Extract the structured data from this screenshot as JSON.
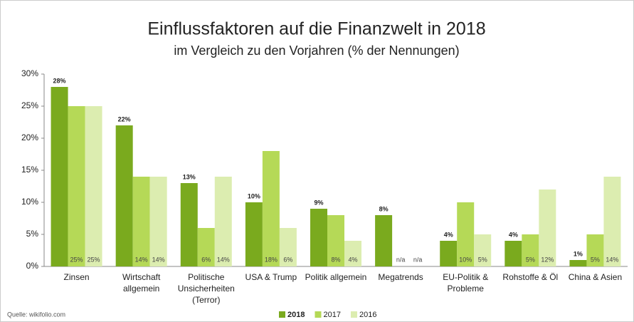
{
  "chart_data": {
    "type": "bar",
    "title": "Einflussfaktoren auf die Finanzwelt in 2018",
    "subtitle": "im Vergleich zu den Vorjahren (% der Nennungen)",
    "source": "Quelle: wikifolio.com",
    "categories": [
      "Zinsen",
      "Wirtschaft\nallgemein",
      "Politische\nUnsicherheiten\n(Terror)",
      "USA & Trump",
      "Politik allgemein",
      "Megatrends",
      "EU-Politik &\nProbleme",
      "Rohstoffe & Öl",
      "China & Asien"
    ],
    "series": [
      {
        "name": "2018",
        "color": "#7aaa1e",
        "values": [
          28,
          22,
          13,
          10,
          9,
          8,
          4,
          4,
          1
        ],
        "value_labels": [
          "28%",
          "22%",
          "13%",
          "10%",
          "9%",
          "8%",
          "4%",
          "4%",
          "1%"
        ]
      },
      {
        "name": "2017",
        "color": "#b5d957",
        "values": [
          25,
          14,
          6,
          18,
          8,
          null,
          10,
          5,
          5
        ],
        "value_labels": [
          "25%",
          "14%",
          "6%",
          "18%",
          "8%",
          "n/a",
          "10%",
          "5%",
          "5%"
        ]
      },
      {
        "name": "2016",
        "color": "#dcedb0",
        "values": [
          25,
          14,
          14,
          6,
          4,
          null,
          5,
          12,
          14
        ],
        "value_labels": [
          "25%",
          "14%",
          "14%",
          "6%",
          "4%",
          "n/a",
          "5%",
          "12%",
          "14%"
        ]
      }
    ],
    "ylim": [
      0,
      30
    ],
    "yticks": [
      {
        "value": 0,
        "label": "0%"
      },
      {
        "value": 5,
        "label": "5%"
      },
      {
        "value": 10,
        "label": "10%"
      },
      {
        "value": 15,
        "label": "15%"
      },
      {
        "value": 20,
        "label": "20%"
      },
      {
        "value": 25,
        "label": "25%"
      },
      {
        "value": 30,
        "label": "30%"
      }
    ],
    "grid": false,
    "legend": "bottom"
  }
}
